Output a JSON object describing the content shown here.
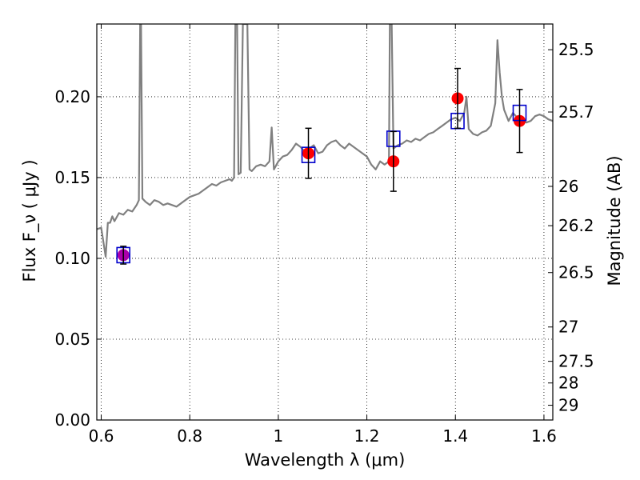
{
  "chart_data": {
    "type": "line",
    "xlabel": "Wavelength  λ (μm)",
    "ylabel": "Flux  F_ν  ( μJy )",
    "ylabel_right": "Magnitude (AB)",
    "xlim": [
      0.59,
      1.62
    ],
    "ylim": [
      0.0,
      0.245
    ],
    "grid": true,
    "x_ticks": [
      {
        "value": 0.6,
        "label": "0.6"
      },
      {
        "value": 0.8,
        "label": "0.8"
      },
      {
        "value": 1.0,
        "label": "1"
      },
      {
        "value": 1.2,
        "label": "1.2"
      },
      {
        "value": 1.4,
        "label": "1.4"
      },
      {
        "value": 1.6,
        "label": "1.6"
      }
    ],
    "y_ticks": [
      {
        "value": 0.0,
        "label": "0.00"
      },
      {
        "value": 0.05,
        "label": "0.05"
      },
      {
        "value": 0.1,
        "label": "0.10"
      },
      {
        "value": 0.15,
        "label": "0.15"
      },
      {
        "value": 0.2,
        "label": "0.20"
      }
    ],
    "y_right_ticks": [
      {
        "value": 25.5,
        "label": "25.5"
      },
      {
        "value": 25.7,
        "label": "25.7"
      },
      {
        "value": 26,
        "label": "26"
      },
      {
        "value": 26.2,
        "label": "26.2"
      },
      {
        "value": 26.5,
        "label": "26.5"
      },
      {
        "value": 27,
        "label": "27"
      },
      {
        "value": 27.5,
        "label": "27.5"
      },
      {
        "value": 28,
        "label": "28"
      },
      {
        "value": 29,
        "label": "29"
      }
    ],
    "magnitude_zero_point": 23.9,
    "series": [
      {
        "kind": "model-spectrum",
        "color": "#808080",
        "points": [
          [
            0.59,
            0.118
          ],
          [
            0.6,
            0.119
          ],
          [
            0.605,
            0.11
          ],
          [
            0.61,
            0.101
          ],
          [
            0.615,
            0.122
          ],
          [
            0.62,
            0.122
          ],
          [
            0.625,
            0.126
          ],
          [
            0.63,
            0.123
          ],
          [
            0.64,
            0.128
          ],
          [
            0.65,
            0.127
          ],
          [
            0.66,
            0.13
          ],
          [
            0.67,
            0.129
          ],
          [
            0.68,
            0.133
          ],
          [
            0.685,
            0.136
          ],
          [
            0.688,
            0.245
          ],
          [
            0.69,
            0.245
          ],
          [
            0.693,
            0.137
          ],
          [
            0.7,
            0.135
          ],
          [
            0.71,
            0.133
          ],
          [
            0.72,
            0.136
          ],
          [
            0.73,
            0.135
          ],
          [
            0.74,
            0.133
          ],
          [
            0.75,
            0.134
          ],
          [
            0.76,
            0.133
          ],
          [
            0.77,
            0.132
          ],
          [
            0.78,
            0.134
          ],
          [
            0.79,
            0.136
          ],
          [
            0.8,
            0.138
          ],
          [
            0.81,
            0.139
          ],
          [
            0.82,
            0.14
          ],
          [
            0.83,
            0.142
          ],
          [
            0.84,
            0.144
          ],
          [
            0.85,
            0.146
          ],
          [
            0.86,
            0.145
          ],
          [
            0.87,
            0.147
          ],
          [
            0.88,
            0.148
          ],
          [
            0.89,
            0.149
          ],
          [
            0.895,
            0.148
          ],
          [
            0.9,
            0.15
          ],
          [
            0.903,
            0.245
          ],
          [
            0.907,
            0.245
          ],
          [
            0.91,
            0.152
          ],
          [
            0.915,
            0.153
          ],
          [
            0.92,
            0.245
          ],
          [
            0.93,
            0.245
          ],
          [
            0.935,
            0.155
          ],
          [
            0.94,
            0.154
          ],
          [
            0.95,
            0.157
          ],
          [
            0.96,
            0.158
          ],
          [
            0.97,
            0.157
          ],
          [
            0.98,
            0.16
          ],
          [
            0.985,
            0.181
          ],
          [
            0.99,
            0.155
          ],
          [
            1.0,
            0.16
          ],
          [
            1.01,
            0.163
          ],
          [
            1.02,
            0.164
          ],
          [
            1.03,
            0.167
          ],
          [
            1.04,
            0.171
          ],
          [
            1.05,
            0.169
          ],
          [
            1.06,
            0.166
          ],
          [
            1.07,
            0.168
          ],
          [
            1.08,
            0.17
          ],
          [
            1.09,
            0.165
          ],
          [
            1.1,
            0.166
          ],
          [
            1.11,
            0.17
          ],
          [
            1.12,
            0.172
          ],
          [
            1.13,
            0.173
          ],
          [
            1.14,
            0.17
          ],
          [
            1.15,
            0.168
          ],
          [
            1.16,
            0.171
          ],
          [
            1.17,
            0.169
          ],
          [
            1.18,
            0.167
          ],
          [
            1.19,
            0.165
          ],
          [
            1.2,
            0.163
          ],
          [
            1.21,
            0.158
          ],
          [
            1.22,
            0.155
          ],
          [
            1.23,
            0.16
          ],
          [
            1.24,
            0.158
          ],
          [
            1.25,
            0.16
          ],
          [
            1.252,
            0.245
          ],
          [
            1.256,
            0.245
          ],
          [
            1.26,
            0.168
          ],
          [
            1.27,
            0.17
          ],
          [
            1.28,
            0.171
          ],
          [
            1.29,
            0.173
          ],
          [
            1.3,
            0.172
          ],
          [
            1.31,
            0.174
          ],
          [
            1.32,
            0.173
          ],
          [
            1.33,
            0.175
          ],
          [
            1.34,
            0.177
          ],
          [
            1.35,
            0.178
          ],
          [
            1.36,
            0.18
          ],
          [
            1.37,
            0.182
          ],
          [
            1.38,
            0.184
          ],
          [
            1.39,
            0.186
          ],
          [
            1.4,
            0.187
          ],
          [
            1.41,
            0.185
          ],
          [
            1.42,
            0.19
          ],
          [
            1.425,
            0.2
          ],
          [
            1.43,
            0.18
          ],
          [
            1.44,
            0.177
          ],
          [
            1.45,
            0.176
          ],
          [
            1.46,
            0.178
          ],
          [
            1.47,
            0.179
          ],
          [
            1.48,
            0.182
          ],
          [
            1.49,
            0.196
          ],
          [
            1.495,
            0.235
          ],
          [
            1.5,
            0.215
          ],
          [
            1.505,
            0.2
          ],
          [
            1.51,
            0.192
          ],
          [
            1.52,
            0.185
          ],
          [
            1.53,
            0.19
          ],
          [
            1.54,
            0.187
          ],
          [
            1.55,
            0.186
          ],
          [
            1.56,
            0.184
          ],
          [
            1.57,
            0.185
          ],
          [
            1.58,
            0.188
          ],
          [
            1.59,
            0.189
          ],
          [
            1.6,
            0.188
          ],
          [
            1.61,
            0.186
          ],
          [
            1.62,
            0.185
          ]
        ]
      },
      {
        "kind": "observed-photometry",
        "marker": "filled-circle",
        "color": "#ff0000",
        "points": [
          {
            "x": 1.068,
            "y": 0.165,
            "yerr": 0.0155
          },
          {
            "x": 1.26,
            "y": 0.16,
            "yerr": 0.0185
          },
          {
            "x": 1.405,
            "y": 0.199,
            "yerr": 0.0185
          },
          {
            "x": 1.545,
            "y": 0.185,
            "yerr": 0.0195
          }
        ]
      },
      {
        "kind": "observed-photometry-optical",
        "marker": "filled-circle",
        "color": "#aa00aa",
        "points": [
          {
            "x": 0.65,
            "y": 0.102,
            "yerr": 0.0055
          }
        ]
      },
      {
        "kind": "model-photometry",
        "marker": "open-square",
        "color": "#0000cc",
        "points": [
          {
            "x": 0.65,
            "y": 0.102
          },
          {
            "x": 1.068,
            "y": 0.164
          },
          {
            "x": 1.26,
            "y": 0.174
          },
          {
            "x": 1.405,
            "y": 0.185
          },
          {
            "x": 1.545,
            "y": 0.19
          }
        ]
      }
    ]
  }
}
